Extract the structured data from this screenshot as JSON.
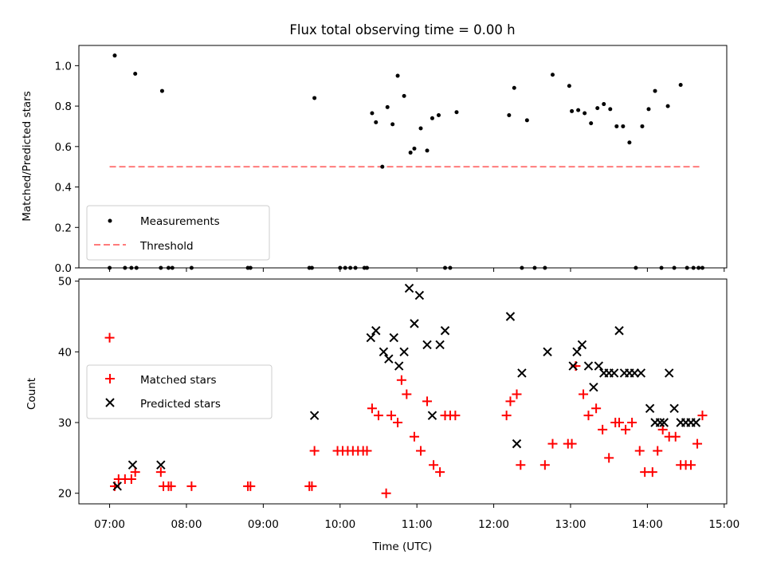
{
  "chart_data": [
    {
      "type": "scatter",
      "title": "Flux total observing time = 0.00 h",
      "ylabel": "Matched/Predicted stars",
      "ylim": [
        0,
        1.1
      ],
      "yticks": [
        0.0,
        0.2,
        0.4,
        0.6,
        0.8,
        1.0
      ],
      "ytick_labels": [
        "0.0",
        "0.2",
        "0.4",
        "0.6",
        "0.8",
        "1.0"
      ],
      "series": [
        {
          "name": "Measurements",
          "kind": "scatter",
          "color": "#000000",
          "x": [
            "07:00",
            "07:04",
            "07:12",
            "07:17",
            "07:20",
            "07:21",
            "07:40",
            "07:41",
            "07:46",
            "07:49",
            "08:04",
            "08:48",
            "08:50",
            "09:36",
            "09:38",
            "09:40",
            "10:00",
            "10:04",
            "10:08",
            "10:12",
            "10:19",
            "10:21",
            "10:25",
            "10:28",
            "10:33",
            "10:37",
            "10:41",
            "10:45",
            "10:50",
            "10:55",
            "10:58",
            "11:03",
            "11:08",
            "11:12",
            "11:17",
            "11:22",
            "11:26",
            "11:31",
            "12:12",
            "12:16",
            "12:22",
            "12:26",
            "12:32",
            "12:40",
            "12:46",
            "12:59",
            "13:01",
            "13:06",
            "13:11",
            "13:16",
            "13:21",
            "13:26",
            "13:31",
            "13:36",
            "13:41",
            "13:46",
            "13:51",
            "13:56",
            "14:01",
            "14:06",
            "14:11",
            "14:16",
            "14:21",
            "14:26",
            "14:31",
            "14:36",
            "14:40",
            "14:43"
          ],
          "y": [
            0.0,
            1.05,
            0.0,
            0.0,
            0.96,
            0.0,
            0.0,
            0.875,
            0.0,
            0.0,
            0.0,
            0.0,
            0.0,
            0.0,
            0.0,
            0.84,
            0.0,
            0.0,
            0.0,
            0.0,
            0.0,
            0.0,
            0.765,
            0.72,
            0.5,
            0.795,
            0.71,
            0.95,
            0.85,
            0.57,
            0.59,
            0.69,
            0.58,
            0.74,
            0.755,
            0.0,
            0.0,
            0.77,
            0.755,
            0.89,
            0.0,
            0.73,
            0.0,
            0.0,
            0.955,
            0.9,
            0.775,
            0.78,
            0.765,
            0.715,
            0.79,
            0.81,
            0.785,
            0.7,
            0.7,
            0.62,
            0.0,
            0.7,
            0.785,
            0.875,
            0.0,
            0.8,
            0.0,
            0.905,
            0.0,
            0.0,
            0.0,
            0.0
          ]
        },
        {
          "name": "Threshold",
          "kind": "line",
          "color": "#ff7b7b",
          "x": [
            "07:00",
            "14:43"
          ],
          "y": [
            0.5,
            0.5
          ]
        }
      ],
      "legend": "lower-left"
    },
    {
      "type": "scatter",
      "ylabel": "Count",
      "xlabel": "Time (UTC)",
      "ylim": [
        18.5,
        50.3
      ],
      "yticks": [
        20,
        30,
        40,
        50
      ],
      "ytick_labels": [
        "20",
        "30",
        "40",
        "50"
      ],
      "xlim": [
        "06:36",
        "15:02"
      ],
      "xticks": [
        "07:00",
        "08:00",
        "09:00",
        "10:00",
        "11:00",
        "12:00",
        "13:00",
        "14:00",
        "15:00"
      ],
      "series": [
        {
          "name": "Matched stars",
          "marker": "+",
          "color": "#ff0000",
          "x": [
            "07:00",
            "07:04",
            "07:07",
            "07:12",
            "07:17",
            "07:20",
            "07:40",
            "07:42",
            "07:46",
            "07:48",
            "08:04",
            "08:48",
            "08:50",
            "09:36",
            "09:38",
            "09:40",
            "09:58",
            "10:02",
            "10:06",
            "10:10",
            "10:14",
            "10:18",
            "10:21",
            "10:25",
            "10:30",
            "10:36",
            "10:40",
            "10:45",
            "10:48",
            "10:52",
            "10:58",
            "11:03",
            "11:08",
            "11:13",
            "11:18",
            "11:22",
            "11:26",
            "11:30",
            "12:10",
            "12:13",
            "12:18",
            "12:21",
            "12:40",
            "12:46",
            "12:58",
            "13:01",
            "13:04",
            "13:10",
            "13:14",
            "13:20",
            "13:25",
            "13:30",
            "13:35",
            "13:38",
            "13:43",
            "13:48",
            "13:54",
            "13:58",
            "14:04",
            "14:08",
            "14:12",
            "14:17",
            "14:22",
            "14:26",
            "14:30",
            "14:34",
            "14:39",
            "14:43"
          ],
          "y": [
            42,
            21,
            22,
            22,
            22,
            23,
            23,
            21,
            21,
            21,
            21,
            21,
            21,
            21,
            21,
            26,
            26,
            26,
            26,
            26,
            26,
            26,
            26,
            32,
            31,
            20,
            31,
            30,
            36,
            34,
            28,
            26,
            33,
            24,
            23,
            31,
            31,
            31,
            31,
            33,
            34,
            24,
            24,
            27,
            27,
            27,
            38,
            34,
            31,
            32,
            29,
            25,
            30,
            30,
            29,
            30,
            26,
            23,
            23,
            26,
            29,
            28,
            28,
            24,
            24,
            24,
            27,
            31
          ]
        },
        {
          "name": "Predicted stars",
          "marker": "x",
          "color": "#000000",
          "x": [
            "07:06",
            "07:18",
            "07:40",
            "09:40",
            "10:24",
            "10:28",
            "10:34",
            "10:38",
            "10:42",
            "10:46",
            "10:50",
            "10:54",
            "10:58",
            "11:02",
            "11:08",
            "11:12",
            "11:18",
            "11:22",
            "12:13",
            "12:18",
            "12:22",
            "12:42",
            "13:02",
            "13:05",
            "13:09",
            "13:14",
            "13:18",
            "13:22",
            "13:26",
            "13:30",
            "13:34",
            "13:38",
            "13:42",
            "13:46",
            "13:50",
            "13:55",
            "14:02",
            "14:06",
            "14:10",
            "14:13",
            "14:17",
            "14:21",
            "14:26",
            "14:30",
            "14:34",
            "14:38"
          ],
          "y": [
            21,
            24,
            24,
            31,
            42,
            43,
            40,
            39,
            42,
            38,
            40,
            49,
            44,
            48,
            41,
            31,
            41,
            43,
            45,
            27,
            37,
            40,
            38,
            40,
            41,
            38,
            35,
            38,
            37,
            37,
            37,
            43,
            37,
            37,
            37,
            37,
            32,
            30,
            30,
            30,
            37,
            32,
            30,
            30,
            30,
            30
          ]
        }
      ],
      "legend": "center-left"
    }
  ]
}
